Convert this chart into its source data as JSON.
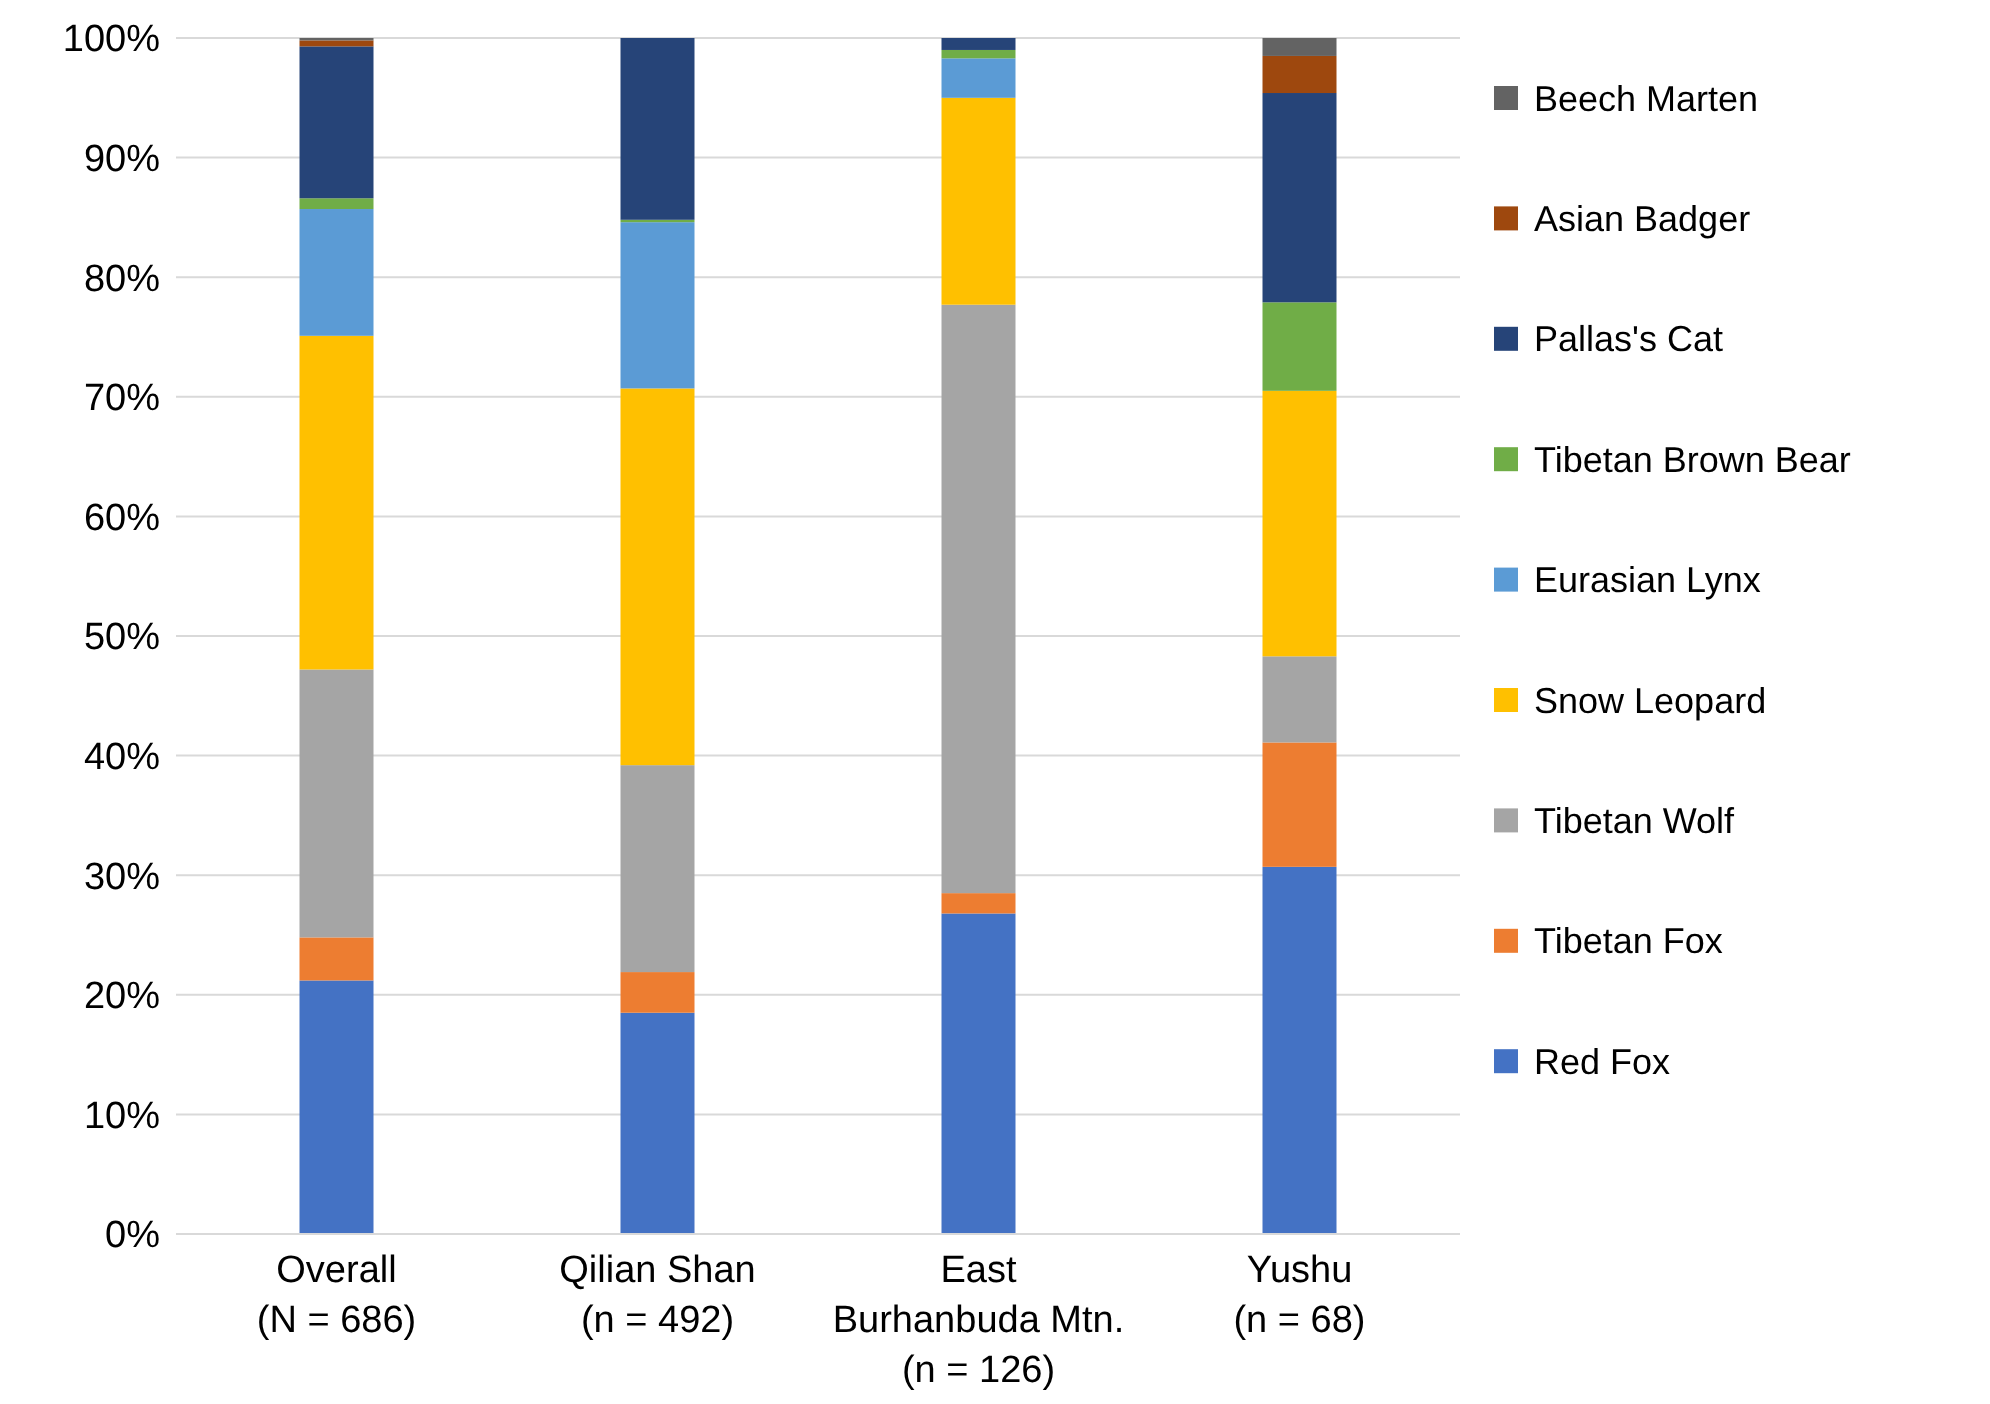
{
  "chart_data": {
    "type": "bar",
    "stacked": true,
    "categories": [
      "Overall\n(N = 686)",
      "Qilian Shan\n(n = 492)",
      "East\nBurhanbuda Mtn.\n(n = 126)",
      "Yushu\n(n = 68)"
    ],
    "series": [
      {
        "name": "Red Fox",
        "color": "#4472c4",
        "values": [
          21.2,
          18.5,
          26.8,
          30.7
        ]
      },
      {
        "name": "Tibetan Fox",
        "color": "#ed7d31",
        "values": [
          3.6,
          3.4,
          1.7,
          10.4
        ]
      },
      {
        "name": "Tibetan Wolf",
        "color": "#a5a5a5",
        "values": [
          22.4,
          17.3,
          49.2,
          7.2
        ]
      },
      {
        "name": "Snow Leopard",
        "color": "#ffc000",
        "values": [
          27.9,
          31.5,
          17.3,
          22.2
        ]
      },
      {
        "name": "Eurasian Lynx",
        "color": "#5b9bd5",
        "values": [
          10.6,
          13.9,
          3.3,
          0
        ]
      },
      {
        "name": "Tibetan Brown Bear",
        "color": "#70ad47",
        "values": [
          0.9,
          0.2,
          0.7,
          7.4
        ]
      },
      {
        "name": "Pallas's Cat",
        "color": "#264478",
        "values": [
          12.7,
          15.2,
          1.0,
          17.5
        ]
      },
      {
        "name": "Asian Badger",
        "color": "#9e480e",
        "values": [
          0.5,
          0,
          0,
          3.1
        ]
      },
      {
        "name": "Beech Marten",
        "color": "#636363",
        "values": [
          0.2,
          0,
          0,
          1.5
        ]
      }
    ],
    "ylim": [
      0,
      100
    ],
    "yticks": [
      {
        "value": 0,
        "label": "0%"
      },
      {
        "value": 10,
        "label": "10%"
      },
      {
        "value": 20,
        "label": "20%"
      },
      {
        "value": 30,
        "label": "30%"
      },
      {
        "value": 40,
        "label": "40%"
      },
      {
        "value": 50,
        "label": "50%"
      },
      {
        "value": 60,
        "label": "60%"
      },
      {
        "value": 70,
        "label": "70%"
      },
      {
        "value": 80,
        "label": "80%"
      },
      {
        "value": 90,
        "label": "90%"
      },
      {
        "value": 100,
        "label": "100%"
      }
    ],
    "grid": "y",
    "legend": "right"
  }
}
